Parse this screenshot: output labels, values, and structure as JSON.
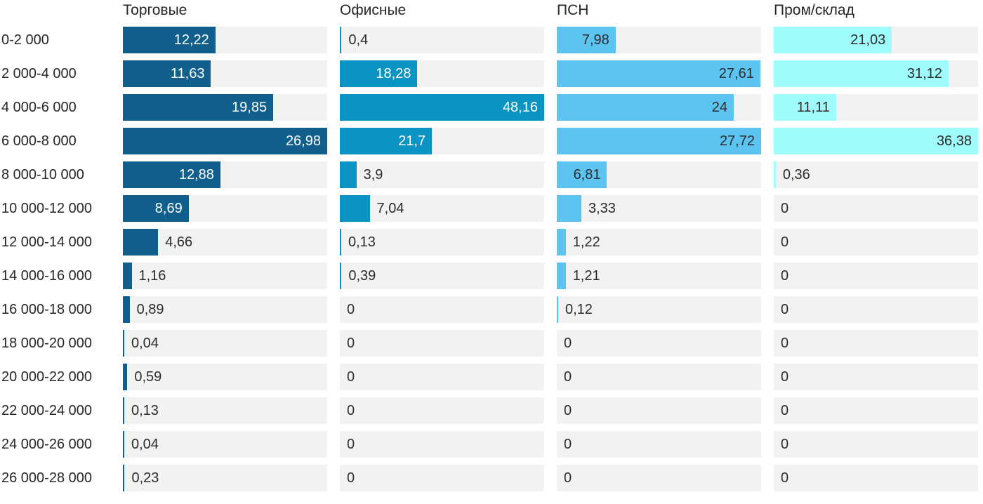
{
  "chart_data": {
    "type": "bar",
    "orientation": "horizontal",
    "title": "",
    "xlabel": "",
    "ylabel": "",
    "grid": false,
    "legend_position": "column-headers-top",
    "scaling": "each series scaled to its own max filling full track width",
    "decimal_separator": ",",
    "track_color": "#f2f2f2",
    "outside_label_color": "#2b2b2b",
    "categories": [
      "0-2 000",
      "2 000-4 000",
      "4 000-6 000",
      "6 000-8 000",
      "8 000-10 000",
      "10 000-12 000",
      "12 000-14 000",
      "14 000-16 000",
      "16 000-18 000",
      "18 000-20 000",
      "20 000-22 000",
      "22 000-24 000",
      "24 000-26 000",
      "26 000-28 000"
    ],
    "series": [
      {
        "name": "Торговые",
        "color": "#115f8c",
        "inside_label_color": "#ffffff",
        "max": 26.98,
        "values": [
          12.22,
          11.63,
          19.85,
          26.98,
          12.88,
          8.69,
          4.66,
          1.16,
          0.89,
          0.04,
          0.59,
          0.13,
          0.04,
          0.23
        ],
        "labels": [
          "12,22",
          "11,63",
          "19,85",
          "26,98",
          "12,88",
          "8,69",
          "4,66",
          "1,16",
          "0,89",
          "0,04",
          "0,59",
          "0,13",
          "0,04",
          "0,23"
        ]
      },
      {
        "name": "Офисные",
        "color": "#0a94c4",
        "inside_label_color": "#ffffff",
        "max": 48.16,
        "values": [
          0.4,
          18.28,
          48.16,
          21.7,
          3.9,
          7.04,
          0.13,
          0.39,
          0,
          0,
          0,
          0,
          0,
          0
        ],
        "labels": [
          "0,4",
          "18,28",
          "48,16",
          "21,7",
          "3,9",
          "7,04",
          "0,13",
          "0,39",
          "0",
          "0",
          "0",
          "0",
          "0",
          "0"
        ]
      },
      {
        "name": "ПСН",
        "color": "#5bc4f1",
        "inside_label_color": "#2b2b2b",
        "max": 27.72,
        "values": [
          7.98,
          27.61,
          24,
          27.72,
          6.81,
          3.33,
          1.22,
          1.21,
          0.12,
          0,
          0,
          0,
          0,
          0
        ],
        "labels": [
          "7,98",
          "27,61",
          "24",
          "27,72",
          "6,81",
          "3,33",
          "1,22",
          "1,21",
          "0,12",
          "0",
          "0",
          "0",
          "0",
          "0"
        ]
      },
      {
        "name": "Пром/склад",
        "color": "#9ffcfb",
        "inside_label_color": "#2b2b2b",
        "max": 36.38,
        "values": [
          21.03,
          31.12,
          11.11,
          36.38,
          0.36,
          0,
          0,
          0,
          0,
          0,
          0,
          0,
          0,
          0
        ],
        "labels": [
          "21,03",
          "31,12",
          "11,11",
          "36,38",
          "0,36",
          "0",
          "0",
          "0",
          "0",
          "0",
          "0",
          "0",
          "0",
          "0"
        ]
      }
    ]
  }
}
